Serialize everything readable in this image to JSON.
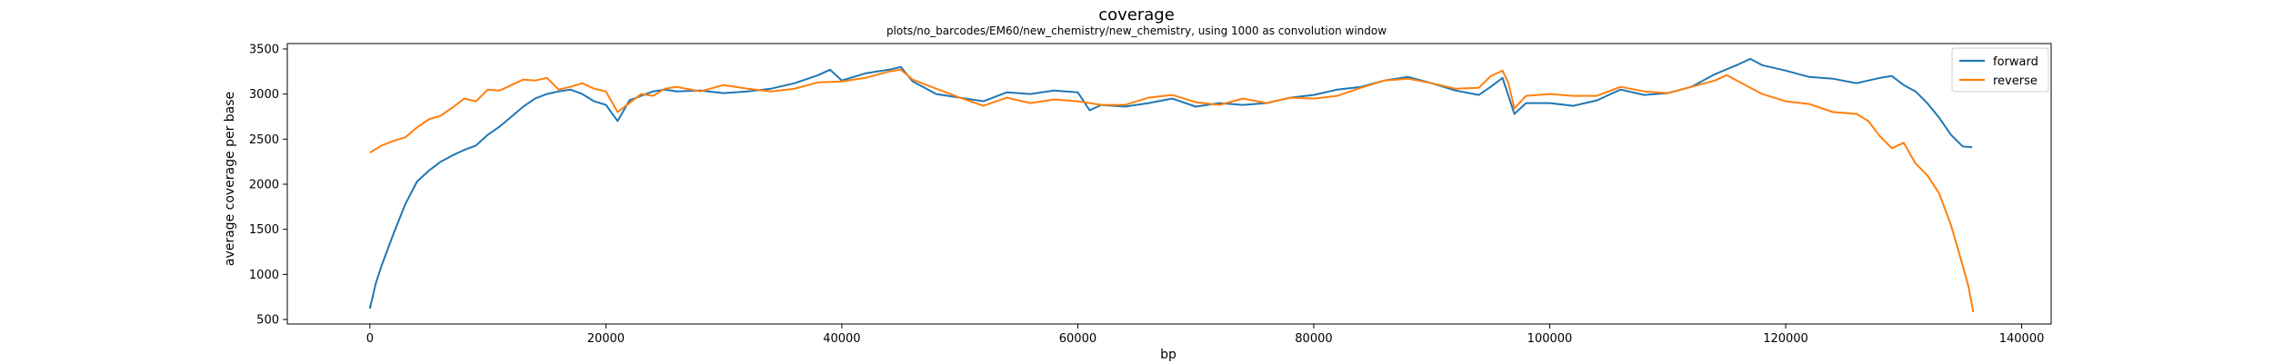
{
  "chart_data": {
    "type": "line",
    "title": "coverage",
    "subtitle": "plots/no_barcodes/EM60/new_chemistry/new_chemistry, using 1000 as convolution window",
    "xlabel": "bp",
    "ylabel": "average coverage per base",
    "xlim": [
      -7000,
      142500
    ],
    "ylim": [
      450,
      3560
    ],
    "xticks": [
      0,
      20000,
      40000,
      60000,
      80000,
      100000,
      120000,
      140000
    ],
    "yticks": [
      500,
      1000,
      1500,
      2000,
      2500,
      3000,
      3500
    ],
    "legend_position": "top-right",
    "grid": false,
    "colors": {
      "forward": "#1f77b4",
      "reverse": "#ff7f0e"
    },
    "series": [
      {
        "name": "forward",
        "x": [
          0,
          500,
          1000,
          2000,
          3000,
          4000,
          5000,
          6000,
          7000,
          8000,
          9000,
          10000,
          11000,
          12000,
          13000,
          14000,
          15000,
          16000,
          17000,
          18000,
          19000,
          20000,
          21000,
          22000,
          23000,
          24000,
          25000,
          26000,
          28000,
          30000,
          32000,
          34000,
          36000,
          38000,
          39000,
          40000,
          42000,
          44000,
          45000,
          46000,
          48000,
          50000,
          52000,
          54000,
          56000,
          58000,
          60000,
          61000,
          62000,
          64000,
          66000,
          68000,
          70000,
          72000,
          74000,
          76000,
          78000,
          80000,
          82000,
          84000,
          86000,
          88000,
          90000,
          92000,
          94000,
          95000,
          96000,
          97000,
          98000,
          100000,
          102000,
          104000,
          106000,
          108000,
          110000,
          112000,
          114000,
          116000,
          117000,
          118000,
          120000,
          122000,
          124000,
          126000,
          128000,
          129000,
          130000,
          131000,
          132000,
          133000,
          134000,
          135000,
          135800
        ],
        "y": [
          620,
          900,
          1100,
          1450,
          1780,
          2030,
          2150,
          2250,
          2320,
          2380,
          2430,
          2550,
          2640,
          2750,
          2860,
          2950,
          3000,
          3030,
          3050,
          3000,
          2920,
          2880,
          2700,
          2930,
          2980,
          3030,
          3050,
          3030,
          3040,
          3010,
          3030,
          3060,
          3120,
          3210,
          3270,
          3150,
          3230,
          3270,
          3300,
          3140,
          3000,
          2960,
          2920,
          3020,
          3000,
          3040,
          3020,
          2820,
          2880,
          2860,
          2900,
          2950,
          2860,
          2900,
          2880,
          2900,
          2960,
          2990,
          3050,
          3080,
          3150,
          3190,
          3120,
          3040,
          2990,
          3080,
          3180,
          2780,
          2900,
          2900,
          2870,
          2930,
          3050,
          2990,
          3010,
          3080,
          3220,
          3330,
          3390,
          3320,
          3260,
          3190,
          3170,
          3120,
          3180,
          3200,
          3100,
          3030,
          2900,
          2740,
          2550,
          2420,
          2410
        ]
      },
      {
        "name": "reverse",
        "x": [
          0,
          1000,
          2000,
          3000,
          4000,
          5000,
          6000,
          7000,
          8000,
          9000,
          10000,
          11000,
          12000,
          13000,
          14000,
          15000,
          16000,
          17000,
          18000,
          19000,
          20000,
          21000,
          22000,
          23000,
          24000,
          25000,
          26000,
          28000,
          30000,
          32000,
          34000,
          36000,
          38000,
          40000,
          42000,
          44000,
          45000,
          46000,
          48000,
          50000,
          52000,
          54000,
          56000,
          58000,
          60000,
          62000,
          64000,
          66000,
          68000,
          70000,
          72000,
          74000,
          76000,
          78000,
          80000,
          82000,
          84000,
          86000,
          88000,
          90000,
          92000,
          94000,
          95000,
          96000,
          96500,
          97000,
          98000,
          100000,
          102000,
          104000,
          106000,
          108000,
          110000,
          112000,
          114000,
          115000,
          116000,
          118000,
          120000,
          122000,
          124000,
          126000,
          127000,
          128000,
          129000,
          130000,
          131000,
          132000,
          133000,
          134000,
          135000,
          135500,
          135900
        ],
        "y": [
          2350,
          2430,
          2480,
          2520,
          2630,
          2720,
          2760,
          2850,
          2950,
          2920,
          3050,
          3040,
          3100,
          3160,
          3150,
          3180,
          3050,
          3080,
          3120,
          3060,
          3030,
          2800,
          2900,
          3000,
          2980,
          3060,
          3080,
          3030,
          3100,
          3060,
          3030,
          3060,
          3130,
          3140,
          3180,
          3250,
          3270,
          3160,
          3060,
          2960,
          2870,
          2960,
          2900,
          2940,
          2920,
          2880,
          2880,
          2960,
          2990,
          2910,
          2880,
          2950,
          2900,
          2960,
          2950,
          2980,
          3070,
          3150,
          3170,
          3120,
          3060,
          3070,
          3200,
          3260,
          3120,
          2840,
          2980,
          3000,
          2980,
          2980,
          3080,
          3030,
          3010,
          3080,
          3150,
          3210,
          3140,
          3000,
          2920,
          2890,
          2800,
          2780,
          2700,
          2530,
          2400,
          2460,
          2230,
          2100,
          1900,
          1550,
          1100,
          860,
          580
        ]
      }
    ]
  }
}
